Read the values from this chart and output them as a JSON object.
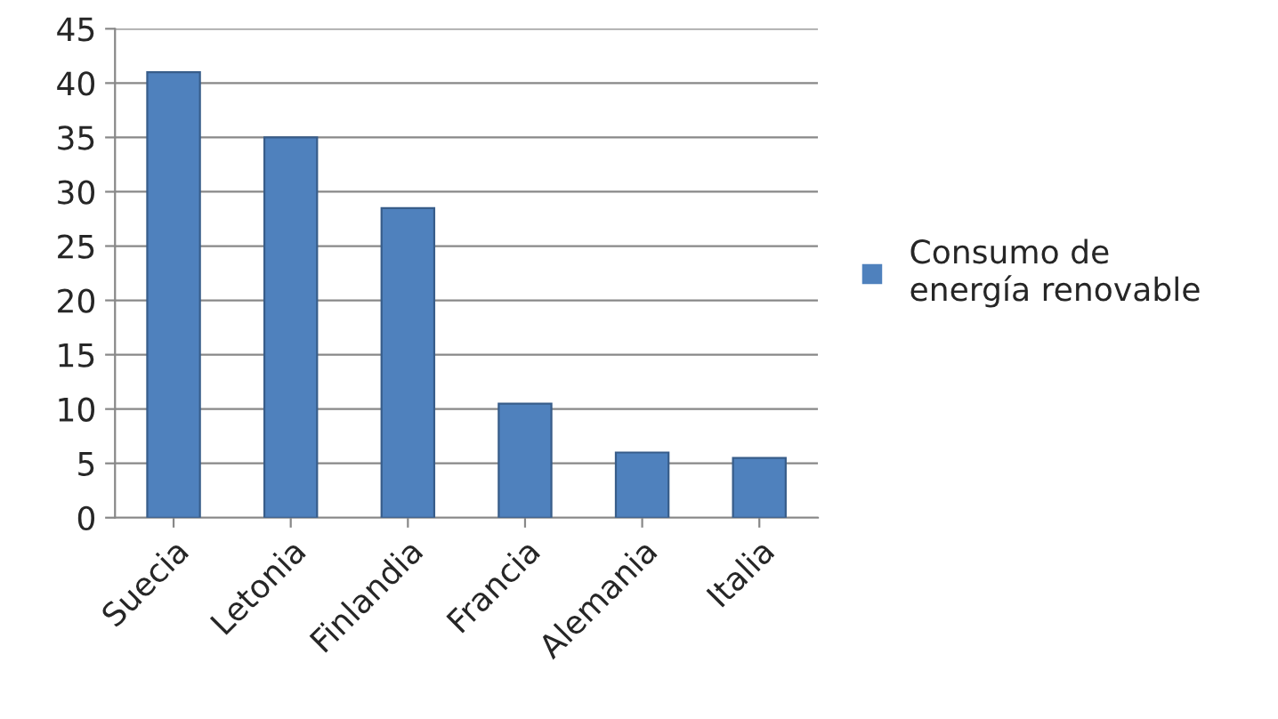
{
  "chart_data": {
    "type": "bar",
    "categories": [
      "Suecia",
      "Letonia",
      "Finlandia",
      "Francia",
      "Alemania",
      "Italia"
    ],
    "series": [
      {
        "name": "Consumo de energía renovable",
        "color": "#4f81bd",
        "values": [
          41,
          35,
          28.5,
          10.5,
          6,
          5.5
        ]
      }
    ],
    "ylim": [
      0,
      45
    ],
    "yticks": [
      0,
      5,
      10,
      15,
      20,
      25,
      30,
      35,
      40,
      45
    ],
    "grid": "y",
    "legend": "right"
  }
}
